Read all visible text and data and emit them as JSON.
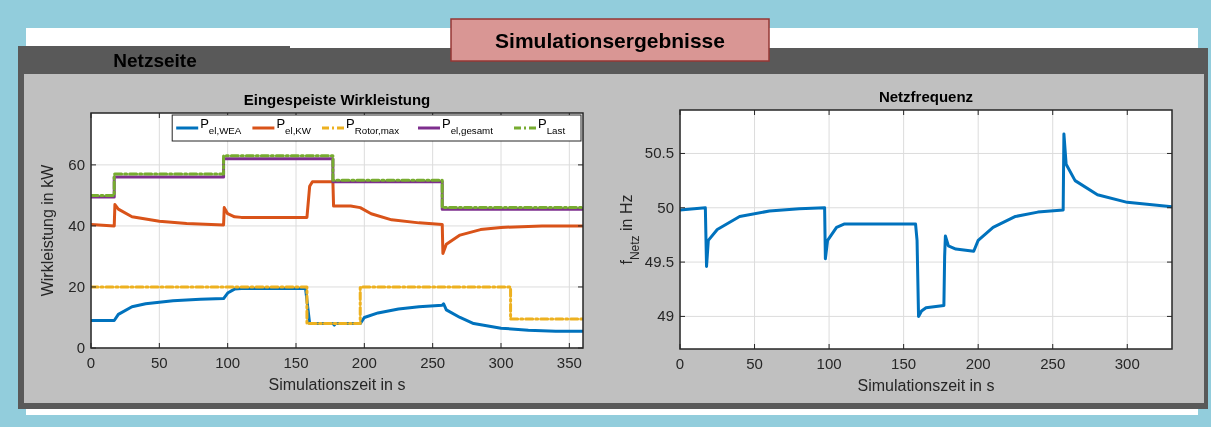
{
  "chart_data": [
    {
      "type": "line",
      "title": "Eingespeiste Wirkleistung",
      "xlabel": "Simulationszeit in s",
      "ylabel": "Wirkleistung in kW",
      "annotations": [
        "Simulationsergebnisse",
        "Netzseite"
      ],
      "xlim": [
        0,
        360
      ],
      "ylim": [
        0,
        77
      ],
      "xticks": [
        0,
        50,
        100,
        150,
        200,
        250,
        300,
        350
      ],
      "yticks": [
        0,
        20,
        40,
        60
      ],
      "grid": true,
      "legend": "top right",
      "series": [
        {
          "name": "P$_{el,WEA}$",
          "color": "#0072bd",
          "line_style": "solid",
          "x": [
            0,
            17,
            20,
            30,
            40,
            60,
            80,
            97,
            100,
            105,
            110,
            157,
            160,
            177,
            178,
            179,
            197,
            200,
            210,
            225,
            240,
            257,
            258,
            260,
            270,
            280,
            300,
            320,
            340,
            360
          ],
          "values": [
            9,
            9,
            11,
            13.5,
            14.5,
            15.5,
            16,
            16.2,
            18,
            19.3,
            19.5,
            19.5,
            8,
            8,
            7.5,
            8,
            8,
            10,
            11.5,
            12.8,
            13.5,
            14,
            14.5,
            12.5,
            10,
            8,
            6.5,
            5.8,
            5.5,
            5.5
          ]
        },
        {
          "name": "P$_{el,KW}$",
          "color": "#d95319",
          "line_style": "solid",
          "x": [
            0,
            17,
            17.5,
            20,
            30,
            50,
            70,
            97,
            97.5,
            100,
            105,
            110,
            158,
            160,
            162,
            177,
            177.5,
            190,
            197,
            205,
            220,
            240,
            257,
            257.5,
            260,
            270,
            285,
            300,
            330,
            360
          ],
          "values": [
            40.5,
            40,
            47,
            45.5,
            43,
            41.5,
            40.8,
            40.3,
            46,
            44,
            43,
            42.8,
            42.8,
            53,
            54.5,
            54.5,
            46.5,
            46.5,
            46,
            44,
            42,
            41,
            40.5,
            31,
            34,
            37,
            38.8,
            39.5,
            40,
            40
          ]
        },
        {
          "name": "P$_{Rotor,max}$",
          "color": "#edb120",
          "line_style": "dashed",
          "x": [
            0,
            158,
            158,
            197,
            197,
            307,
            307,
            360
          ],
          "values": [
            20,
            20,
            8,
            8,
            20,
            20,
            9.5,
            9.5
          ]
        },
        {
          "name": "P$_{el,gesamt}$",
          "color": "#7e2f8e",
          "line_style": "solid",
          "x": [
            0,
            17,
            17,
            97,
            97,
            177,
            177,
            257,
            257,
            360
          ],
          "values": [
            49.5,
            49.5,
            56,
            56,
            62,
            62,
            54.5,
            54.5,
            45.5,
            45.5
          ]
        },
        {
          "name": "P$_{Last}$",
          "color": "#77ac30",
          "line_style": "dashed",
          "x": [
            0,
            17,
            17,
            97,
            97,
            177,
            177,
            257,
            257,
            360
          ],
          "values": [
            50,
            50,
            57,
            57,
            63,
            63,
            55,
            55,
            46,
            46
          ]
        }
      ]
    },
    {
      "type": "line",
      "title": "Netzfrequenz",
      "xlabel": "Simulationszeit in s",
      "ylabel": "f$_{Netz}$ in Hz",
      "xlim": [
        0,
        330
      ],
      "ylim": [
        48.7,
        50.9
      ],
      "xticks": [
        0,
        50,
        100,
        150,
        200,
        250,
        300
      ],
      "yticks": [
        49,
        49.5,
        50,
        50.5
      ],
      "grid": true,
      "series": [
        {
          "color": "#0072bd",
          "line_style": "solid",
          "x": [
            0,
            17,
            17.8,
            19,
            25,
            40,
            60,
            80,
            97,
            97.5,
            99,
            105,
            110,
            158,
            159,
            160,
            162,
            165,
            177,
            177.5,
            178,
            180,
            185,
            197,
            200,
            210,
            225,
            240,
            257,
            257.5,
            259,
            265,
            280,
            300,
            330
          ],
          "values": [
            49.98,
            50,
            49.46,
            49.7,
            49.8,
            49.92,
            49.97,
            49.99,
            50,
            49.53,
            49.7,
            49.82,
            49.85,
            49.85,
            49.7,
            49,
            49.05,
            49.08,
            49.1,
            49.55,
            49.74,
            49.65,
            49.62,
            49.6,
            49.7,
            49.82,
            49.92,
            49.96,
            49.98,
            50.68,
            50.4,
            50.25,
            50.12,
            50.05,
            50.01
          ]
        }
      ]
    }
  ]
}
